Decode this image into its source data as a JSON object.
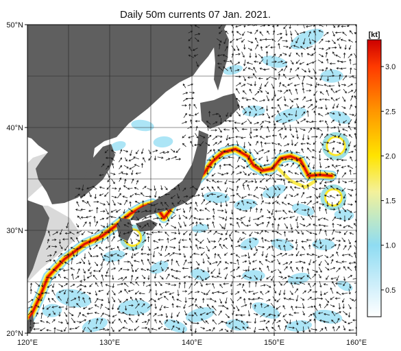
{
  "title": "Daily 50m currents 07 Jan. 2021.",
  "map": {
    "lon_range": [
      120,
      160
    ],
    "lat_range": [
      20,
      50
    ],
    "x_ticks": [
      {
        "value": 120,
        "label": "120°E"
      },
      {
        "value": 130,
        "label": "130°E"
      },
      {
        "value": 140,
        "label": "140°E"
      },
      {
        "value": 150,
        "label": "150°E"
      },
      {
        "value": 160,
        "label": "160°E"
      }
    ],
    "y_ticks": [
      {
        "value": 50,
        "label": "50°N"
      },
      {
        "value": 40,
        "label": "40°N"
      },
      {
        "value": 30,
        "label": "30°N"
      },
      {
        "value": 20,
        "label": "20°N"
      }
    ],
    "grid": true,
    "grid_step_deg": 5,
    "colors": {
      "land": "#5f5f5f",
      "shelf": "#d9d9d9",
      "ocean": "#ffffff",
      "grid": "#222222",
      "arrow": "#1a1a1a"
    }
  },
  "colorbar": {
    "unit_label": "[kt]",
    "min": 0.2,
    "max": 3.3,
    "ticks": [
      {
        "value": 0.5,
        "label": "0.5"
      },
      {
        "value": 1.0,
        "label": "1.0"
      },
      {
        "value": 1.5,
        "label": "1.5"
      },
      {
        "value": 2.0,
        "label": "2.0"
      },
      {
        "value": 2.5,
        "label": "2.5"
      },
      {
        "value": 3.0,
        "label": "3.0"
      }
    ],
    "stops": [
      {
        "value": 0.2,
        "color": "#ffffff"
      },
      {
        "value": 0.5,
        "color": "#d6f1fb"
      },
      {
        "value": 1.0,
        "color": "#8fdcf2"
      },
      {
        "value": 1.3,
        "color": "#bfe8c6"
      },
      {
        "value": 1.6,
        "color": "#f4f19a"
      },
      {
        "value": 2.0,
        "color": "#ffe400"
      },
      {
        "value": 2.5,
        "color": "#ff9600"
      },
      {
        "value": 3.0,
        "color": "#ff3a00"
      },
      {
        "value": 3.3,
        "color": "#cc0000"
      }
    ]
  },
  "currents": {
    "kuroshio_path": [
      [
        120.3,
        21.5
      ],
      [
        121.5,
        23.5
      ],
      [
        122.5,
        25.5
      ],
      [
        124.5,
        27.2
      ],
      [
        127,
        28.7
      ],
      [
        129,
        29.4
      ],
      [
        131,
        30.6
      ],
      [
        132.5,
        31.6
      ],
      [
        134,
        32.3
      ],
      [
        135.2,
        32.6
      ],
      [
        136,
        31.9
      ],
      [
        136.6,
        31.2
      ],
      [
        137.2,
        31.8
      ],
      [
        137.8,
        32.9
      ],
      [
        139,
        33.5
      ],
      [
        140.3,
        34.6
      ],
      [
        141.5,
        35.6
      ],
      [
        142.5,
        36.7
      ],
      [
        143.8,
        37.6
      ],
      [
        145.3,
        37.9
      ],
      [
        146.8,
        37.2
      ],
      [
        147.5,
        36.3
      ],
      [
        148.5,
        35.8
      ],
      [
        149.8,
        36.0
      ],
      [
        150.8,
        37.0
      ],
      [
        152,
        37.2
      ],
      [
        153.2,
        36.8
      ],
      [
        154.2,
        35.3
      ],
      [
        155.5,
        35.4
      ],
      [
        157,
        35.3
      ]
    ],
    "eddies": [
      {
        "lon": 132.8,
        "lat": 29.3,
        "r": 1.0
      },
      {
        "lon": 157.5,
        "lat": 38.2,
        "r": 1.1
      },
      {
        "lon": 157.2,
        "lat": 33.2,
        "r": 1.0
      }
    ]
  }
}
